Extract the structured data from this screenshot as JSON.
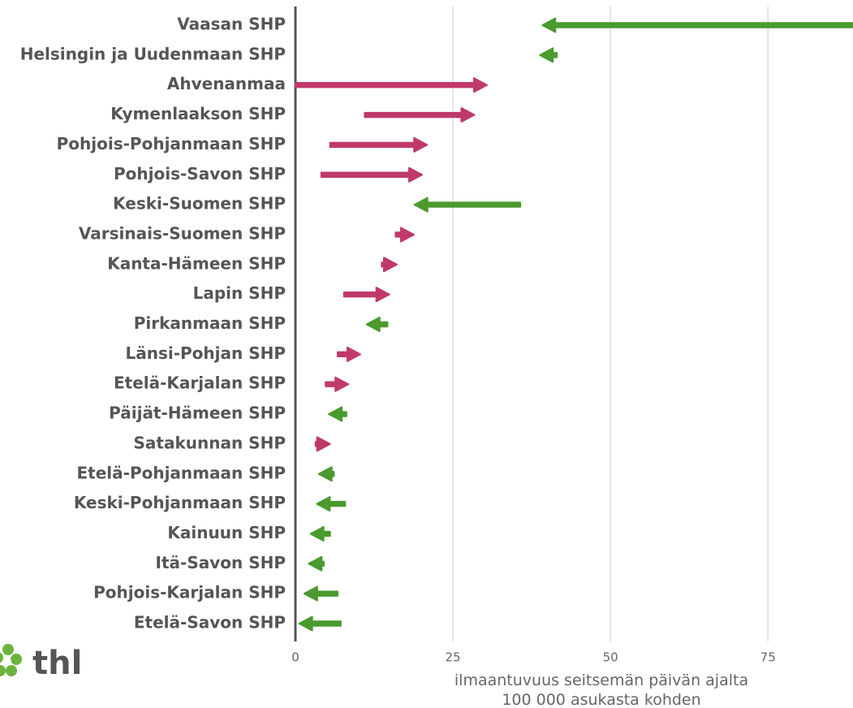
{
  "chart_data": {
    "type": "arrow",
    "categories": [
      "Vaasan SHP",
      "Helsingin ja Uudenmaan SHP",
      "Ahvenanmaa",
      "Kymenlaakson SHP",
      "Pohjois-Pohjanmaan SHP",
      "Pohjois-Savon SHP",
      "Keski-Suomen SHP",
      "Varsinais-Suomen SHP",
      "Kanta-Hämeen SHP",
      "Lapin SHP",
      "Pirkanmaan SHP",
      "Länsi-Pohjan SHP",
      "Etelä-Karjalan SHP",
      "Päijät-Hämeen SHP",
      "Satakunnan SHP",
      "Etelä-Pohjanmaan SHP",
      "Keski-Pohjanmaan SHP",
      "Kainuun SHP",
      "Itä-Savon SHP",
      "Pohjois-Karjalan SHP",
      "Etelä-Savon SHP"
    ],
    "series": [
      {
        "values": [
          88.5,
          41.5,
          0,
          11.0,
          5.5,
          4.1,
          35.7,
          15.9,
          13.7,
          7.7,
          14.6,
          6.7,
          4.8,
          8.1,
          3.2,
          6.1,
          7.9,
          5.5,
          4.5,
          6.7,
          7.2
        ]
      },
      {
        "values": [
          39.2,
          38.8,
          30.4,
          28.4,
          20.9,
          20.1,
          18.9,
          18.8,
          16.1,
          14.9,
          11.3,
          10.3,
          8.4,
          5.3,
          5.5,
          3.7,
          3.4,
          2.4,
          2.1,
          1.4,
          0.6
        ]
      }
    ],
    "increase_color": "#c0396b",
    "decrease_color": "#4a9a2e",
    "xlim": [
      0,
      88.5
    ],
    "xticks": [
      0,
      25,
      50,
      75
    ],
    "grid": true,
    "xlabel": [
      "ilmaantuvuus seitsemän päivän ajalta",
      "100 000 asukasta kohden"
    ],
    "logo": "thl"
  }
}
